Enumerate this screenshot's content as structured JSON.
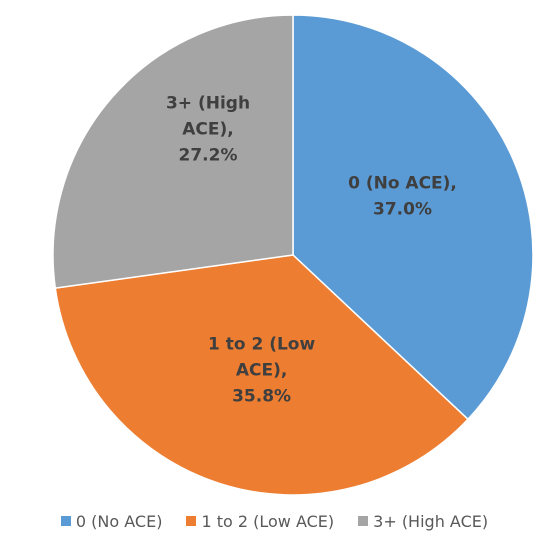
{
  "chart_data": {
    "type": "pie",
    "title": "",
    "slices": [
      {
        "name": "0 (No ACE)",
        "value": 37.0,
        "label": [
          "0 (No ACE),",
          "37.0%"
        ],
        "color": "#5b9bd5"
      },
      {
        "name": "1 to 2 (Low ACE)",
        "value": 35.8,
        "label": [
          "1 to 2 (Low",
          "ACE),",
          "35.8%"
        ],
        "color": "#ed7d31"
      },
      {
        "name": "3+ (High ACE)",
        "value": 27.2,
        "label": [
          "3+ (High",
          "ACE),",
          "27.2%"
        ],
        "color": "#a5a5a5"
      }
    ],
    "start_angle": "12 o'clock",
    "direction": "clockwise",
    "legend_position": "bottom"
  }
}
